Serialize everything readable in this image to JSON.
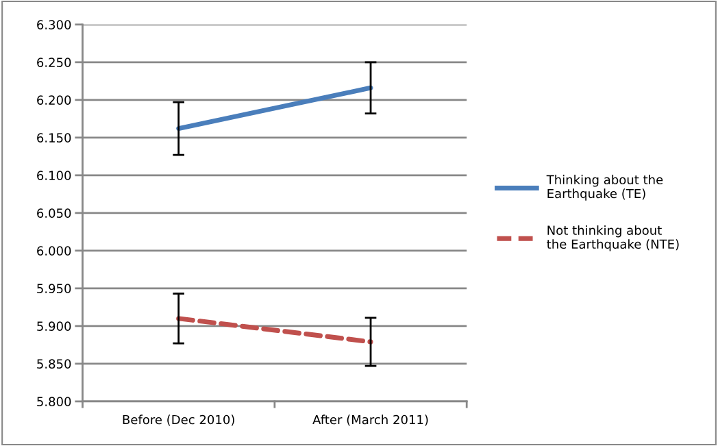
{
  "chart_data": {
    "type": "line",
    "categories": [
      "Before (Dec 2010)",
      "After (March 2011)"
    ],
    "series": [
      {
        "name": "Thinking about the Earthquake (TE)",
        "color": "#4a7ebb",
        "values": [
          6.162,
          6.216
        ],
        "errors": [
          0.035,
          0.034
        ],
        "line_style": "solid"
      },
      {
        "name": "Not thinking about the Earthquake (NTE)",
        "color": "#c0504d",
        "values": [
          5.91,
          5.879
        ],
        "errors": [
          0.033,
          0.032
        ],
        "line_style": "dashed"
      }
    ],
    "ylim": [
      5.8,
      6.3
    ],
    "yticks": [
      {
        "value": 5.8,
        "label": "5.800"
      },
      {
        "value": 5.85,
        "label": "5.850"
      },
      {
        "value": 5.9,
        "label": "5.900"
      },
      {
        "value": 5.95,
        "label": "5.950"
      },
      {
        "value": 6.0,
        "label": "6.000"
      },
      {
        "value": 6.05,
        "label": "6.050"
      },
      {
        "value": 6.1,
        "label": "6.100"
      },
      {
        "value": 6.15,
        "label": "6.150"
      },
      {
        "value": 6.2,
        "label": "6.200"
      },
      {
        "value": 6.25,
        "label": "6.250"
      },
      {
        "value": 6.3,
        "label": "6.300"
      }
    ],
    "grid": "y",
    "legend": "right",
    "marker": "none"
  }
}
